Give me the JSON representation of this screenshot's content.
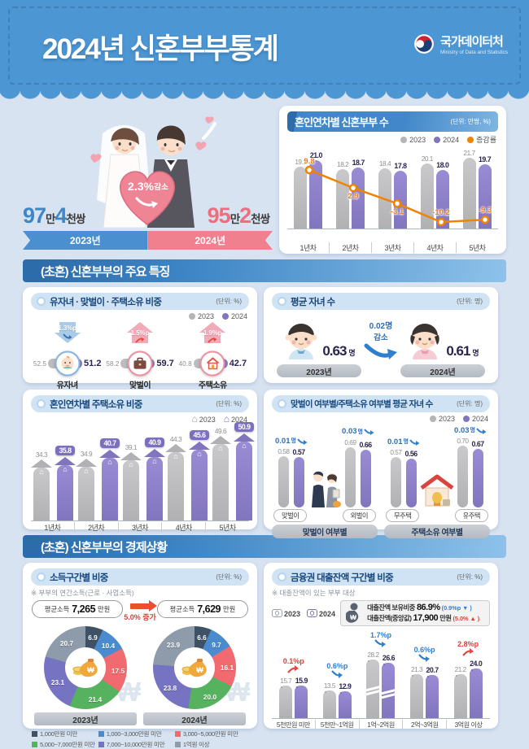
{
  "header": {
    "title": "2024년 신혼부부통계",
    "logo": "국가데이터처",
    "logo_sub": "Ministry of Data and Statistics"
  },
  "summary": {
    "pct": "2.3%",
    "word": "감소",
    "left": {
      "n1": "97",
      "u1": "만",
      "n2": "4",
      "u2": "천쌍",
      "year": "2023년"
    },
    "right": {
      "n1": "95",
      "u1": "만",
      "n2": "2",
      "u2": "천쌍",
      "year": "2024년"
    }
  },
  "marriage_year_chart": {
    "title": "혼인연차별 신혼부부 수",
    "unit": "(단위: 만쌍, %)",
    "legend": [
      "2023",
      "2024",
      "증감률"
    ],
    "categories": [
      "1년차",
      "2년차",
      "3년차",
      "4년차",
      "5년차"
    ],
    "v2023": [
      "19.1",
      "18.2",
      "18.4",
      "20.1",
      "21.7"
    ],
    "v2024": [
      "21.0",
      "18.7",
      "17.8",
      "18.0",
      "19.7"
    ],
    "rate": [
      "9.8",
      "2.9",
      "-3.1",
      "-10.2",
      "-9.3"
    ]
  },
  "section_features": {
    "title": "(초혼) 신혼부부의 주요 특징"
  },
  "features": {
    "title": "유자녀 · 맞벌이 · 주택소유 비중",
    "unit": "(단위: %)",
    "legend": [
      "2023",
      "2024"
    ],
    "items": [
      {
        "label": "유자녀",
        "v2023": "52.5",
        "v2024": "51.2",
        "change": "1.3%p",
        "dir": "down"
      },
      {
        "label": "맞벌이",
        "v2023": "58.2",
        "v2024": "59.7",
        "change": "1.5%p",
        "dir": "up"
      },
      {
        "label": "주택소유",
        "v2023": "40.8",
        "v2024": "42.7",
        "change": "1.9%p",
        "dir": "up"
      }
    ]
  },
  "avg_children": {
    "title": "평균 자녀 수",
    "unit": "(단위: 명)",
    "v2023": "0.63",
    "v2024": "0.61",
    "suffix": "명",
    "change": "0.02명",
    "word": "감소",
    "y2023": "2023년",
    "y2024": "2024년"
  },
  "house_by_year": {
    "title": "혼인연차별 주택소유 비중",
    "unit": "(단위: %)",
    "legend": [
      "2023",
      "2024"
    ],
    "categories": [
      "1년차",
      "2년차",
      "3년차",
      "4년차",
      "5년차"
    ],
    "v2023": [
      "34.3",
      "34.9",
      "39.1",
      "44.3",
      "49.6"
    ],
    "v2024": [
      "35.8",
      "40.7",
      "40.9",
      "45.6",
      "50.9"
    ]
  },
  "children_by_status": {
    "title": "맞벌이 여부별/주택소유 여부별 평균 자녀 수",
    "unit": "(단위: 명)",
    "legend": [
      "2023",
      "2024"
    ],
    "groups": [
      {
        "name": "맞벌이 여부별",
        "items": [
          {
            "label": "맞벌이",
            "v2023": "0.58",
            "v2024": "0.57",
            "change": "0.01",
            "unit": "명"
          },
          {
            "label": "외벌이",
            "v2023": "0.69",
            "v2024": "0.66",
            "change": "0.03",
            "unit": "명"
          }
        ]
      },
      {
        "name": "주택소유 여부별",
        "items": [
          {
            "label": "무주택",
            "v2023": "0.57",
            "v2024": "0.56",
            "change": "0.01",
            "unit": "명"
          },
          {
            "label": "유주택",
            "v2023": "0.70",
            "v2024": "0.67",
            "change": "0.03",
            "unit": "명"
          }
        ]
      }
    ]
  },
  "section_economy": {
    "title": "(초혼) 신혼부부의 경제상황"
  },
  "income": {
    "title": "소득구간별 비중",
    "unit": "(단위: %)",
    "note": "※ 부부의 연간소득(근로 · 사업소득)",
    "avg_label": "평균소득",
    "avg2023": "7,265",
    "avg2024": "7,629",
    "avg_unit": "만원",
    "increase": "5.0% 증가",
    "colors": [
      "#3f5265",
      "#4a8bd0",
      "#f16a70",
      "#56b25e",
      "#7673c2",
      "#8e9baa"
    ],
    "pies": [
      {
        "year": "2023년",
        "values": [
          "6.9",
          "10.4",
          "17.5",
          "21.4",
          "23.1",
          "20.7"
        ]
      },
      {
        "year": "2024년",
        "values": [
          "6.6",
          "9.7",
          "16.1",
          "20.0",
          "23.8",
          "23.9"
        ]
      }
    ],
    "legend": [
      "1,000만원 미만",
      "1,000~3,000만원 미만",
      "3,000~5,000만원 미만",
      "5,000~7,000만원 미만",
      "7,000~10,000만원 미만",
      "1억원 이상"
    ]
  },
  "loans": {
    "title": "금융권 대출잔액 구간별 비중",
    "unit": "(단위: %)",
    "note": "※ 대출잔액이 있는 부부 대상",
    "legend": [
      "2023",
      "2024"
    ],
    "info": [
      {
        "label": "대출잔액 보유비중",
        "value": "86.9%",
        "change": "(0.9%p",
        "arrow": "▼",
        "close": ")"
      },
      {
        "label": "대출잔액(중앙값)",
        "value": "17,900",
        "unit": "만원",
        "change": "(5.0%",
        "arrow": "▲",
        "close": ")"
      }
    ],
    "categories": [
      "5천만원 미만",
      "5천만~1억원",
      "1억~2억원",
      "2억~3억원",
      "3억원 이상"
    ],
    "v2023": [
      "15.7",
      "13.5",
      "28.2",
      "21.3",
      "21.2"
    ],
    "v2024": [
      "15.9",
      "12.9",
      "26.6",
      "20.7",
      "24.0"
    ],
    "changes": [
      {
        "v": "0.1%p",
        "dir": "up"
      },
      {
        "v": "0.6%p",
        "dir": "down"
      },
      {
        "v": "1.7%p",
        "dir": "down"
      },
      {
        "v": "0.6%p",
        "dir": "down"
      },
      {
        "v": "2.8%p",
        "dir": "up"
      }
    ]
  }
}
